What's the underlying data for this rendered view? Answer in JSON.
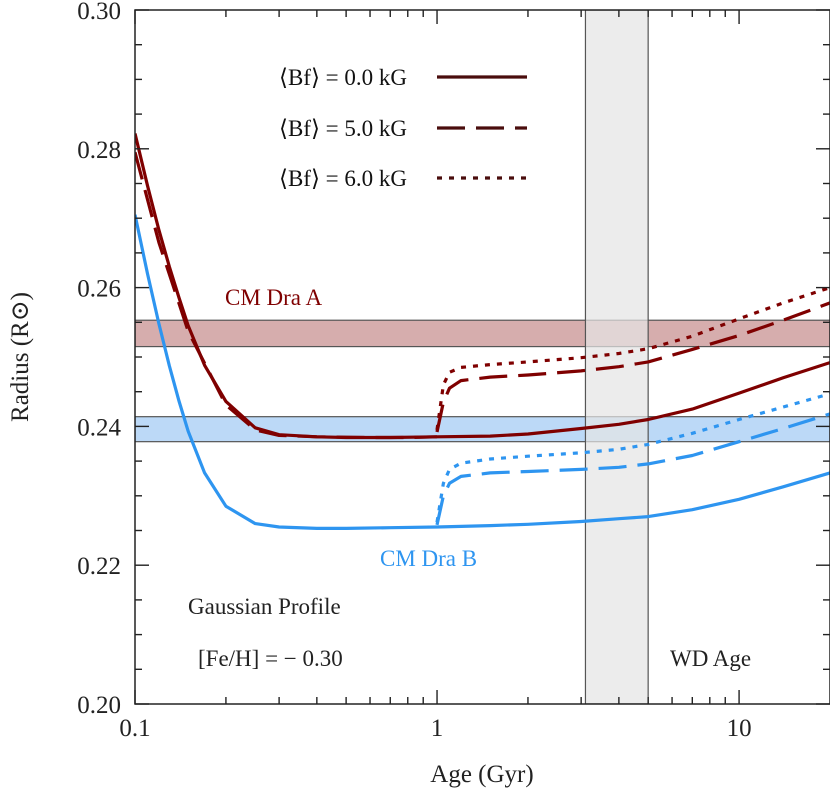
{
  "chart_data": {
    "type": "line",
    "title": "",
    "xlabel": "Age (Gyr)",
    "ylabel": "Radius (R⊙)",
    "xscale": "log",
    "xlim": [
      0.1,
      20
    ],
    "ylim": [
      0.2,
      0.3
    ],
    "xticks": [
      {
        "value": 0.1,
        "label": "0.1"
      },
      {
        "value": 1,
        "label": "1"
      },
      {
        "value": 10,
        "label": "10"
      }
    ],
    "yticks": [
      {
        "value": 0.2,
        "label": "0.20"
      },
      {
        "value": 0.22,
        "label": "0.22"
      },
      {
        "value": 0.24,
        "label": "0.24"
      },
      {
        "value": 0.26,
        "label": "0.26"
      },
      {
        "value": 0.28,
        "label": "0.28"
      },
      {
        "value": 0.3,
        "label": "0.30"
      }
    ],
    "grid": false,
    "legend_position": "top-right",
    "legend": [
      {
        "label": "⟨Bf⟩ = 0.0 kG",
        "style": "solid"
      },
      {
        "label": "⟨Bf⟩ = 5.0 kG",
        "style": "dashed"
      },
      {
        "label": "⟨Bf⟩ = 6.0 kG",
        "style": "dotted"
      }
    ],
    "colors": {
      "star_a": "#7f0000",
      "star_b": "#2e95f0",
      "band_a": "#d6adad",
      "band_b": "#bcd9f7",
      "wd_band": "#e5e5e5"
    },
    "bands": [
      {
        "label": "CM Dra A",
        "axis": "y",
        "range": [
          0.2515,
          0.2553
        ],
        "color": "#d6adad"
      },
      {
        "label": "CM Dra B",
        "axis": "y",
        "range": [
          0.2378,
          0.2414
        ],
        "color": "#bcd9f7"
      },
      {
        "label": "WD Age",
        "axis": "x",
        "range": [
          3.1,
          5.0
        ],
        "color": "#e5e5e5"
      }
    ],
    "annotations": {
      "star_a_label": "CM Dra A",
      "star_b_label": "CM Dra B",
      "profile_label": "Gaussian Profile",
      "metallicity_label": "[Fe/H] = − 0.30",
      "wd_label": "WD Age"
    },
    "series": [
      {
        "star": "A",
        "style": "solid",
        "color": "#7f0000",
        "x": [
          0.1,
          0.11,
          0.12,
          0.13,
          0.14,
          0.15,
          0.17,
          0.2,
          0.25,
          0.3,
          0.4,
          0.5,
          0.7,
          1.0,
          1.5,
          2.0,
          3.0,
          4.0,
          5.0,
          7.0,
          10.0,
          14.0,
          20.0
        ],
        "y": [
          0.2822,
          0.2747,
          0.2683,
          0.263,
          0.2585,
          0.2545,
          0.2488,
          0.2436,
          0.2398,
          0.2388,
          0.2385,
          0.2384,
          0.2384,
          0.2385,
          0.2386,
          0.2389,
          0.2397,
          0.2403,
          0.241,
          0.2425,
          0.2448,
          0.247,
          0.2492
        ]
      },
      {
        "star": "A",
        "style": "dashed",
        "color": "#7f0000",
        "x": [
          0.1,
          0.12,
          0.15,
          0.2,
          0.25,
          0.3,
          0.4,
          0.6,
          0.8,
          1.0
        ],
        "y": [
          0.2795,
          0.2665,
          0.2537,
          0.2431,
          0.2395,
          0.2387,
          0.2385,
          0.2384,
          0.2384,
          0.2385
        ]
      },
      {
        "star": "A",
        "style": "dashed",
        "color": "#7f0000",
        "x": [
          1.0,
          1.05,
          1.1,
          1.2,
          1.5,
          2.0,
          3.0,
          4.0,
          5.0,
          7.0,
          10.0,
          14.0,
          20.0
        ],
        "y": [
          0.2392,
          0.2435,
          0.2455,
          0.2466,
          0.2471,
          0.2474,
          0.248,
          0.2486,
          0.2493,
          0.2511,
          0.2531,
          0.2553,
          0.2578
        ]
      },
      {
        "star": "A",
        "style": "dotted",
        "color": "#7f0000",
        "x": [
          1.0,
          1.05,
          1.1,
          1.2,
          1.5,
          2.0,
          3.0,
          4.0,
          5.0,
          7.0,
          10.0,
          14.0,
          20.0
        ],
        "y": [
          0.2395,
          0.246,
          0.2478,
          0.2485,
          0.2489,
          0.2493,
          0.2499,
          0.2505,
          0.2512,
          0.253,
          0.2555,
          0.2578,
          0.26
        ]
      },
      {
        "star": "B",
        "style": "solid",
        "color": "#2e95f0",
        "x": [
          0.1,
          0.11,
          0.12,
          0.13,
          0.14,
          0.15,
          0.17,
          0.2,
          0.25,
          0.3,
          0.4,
          0.5,
          0.7,
          1.0,
          1.5,
          2.0,
          3.0,
          4.0,
          5.0,
          7.0,
          10.0,
          14.0,
          20.0
        ],
        "y": [
          0.2705,
          0.262,
          0.2548,
          0.2487,
          0.2436,
          0.2393,
          0.2333,
          0.2285,
          0.226,
          0.2255,
          0.2253,
          0.2253,
          0.2254,
          0.2255,
          0.2257,
          0.2259,
          0.2263,
          0.2267,
          0.227,
          0.228,
          0.2295,
          0.2313,
          0.2333
        ]
      },
      {
        "star": "B",
        "style": "dashed",
        "color": "#2e95f0",
        "x": [
          1.0,
          1.05,
          1.1,
          1.2,
          1.5,
          2.0,
          3.0,
          4.0,
          5.0,
          7.0,
          10.0,
          14.0,
          20.0
        ],
        "y": [
          0.2258,
          0.23,
          0.2318,
          0.2328,
          0.2333,
          0.2335,
          0.2338,
          0.2341,
          0.2346,
          0.2358,
          0.2378,
          0.2397,
          0.2418
        ]
      },
      {
        "star": "B",
        "style": "dotted",
        "color": "#2e95f0",
        "x": [
          1.0,
          1.05,
          1.1,
          1.2,
          1.5,
          2.0,
          3.0,
          4.0,
          5.0,
          7.0,
          10.0,
          14.0,
          20.0
        ],
        "y": [
          0.2262,
          0.2318,
          0.2338,
          0.2347,
          0.2353,
          0.2357,
          0.2362,
          0.2367,
          0.2374,
          0.239,
          0.241,
          0.2428,
          0.2447
        ]
      }
    ]
  }
}
